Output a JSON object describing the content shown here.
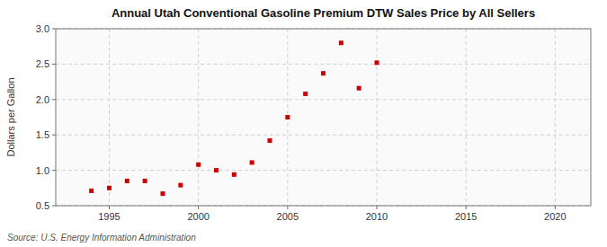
{
  "chart_data": {
    "type": "scatter",
    "title": "Annual Utah Conventional Gasoline Premium DTW Sales Price by All Sellers",
    "y_label": "Dollars per Gallon",
    "annotations": [
      "Source: U.S. Energy Information Administration"
    ],
    "x": [
      1994,
      1995,
      1996,
      1997,
      1998,
      1999,
      2000,
      2001,
      2002,
      2003,
      2004,
      2005,
      2006,
      2007,
      2008,
      2009,
      2010
    ],
    "values": [
      0.71,
      0.75,
      0.85,
      0.85,
      0.67,
      0.79,
      1.08,
      1.0,
      0.94,
      1.11,
      1.42,
      1.75,
      2.08,
      2.37,
      2.8,
      2.16,
      2.52
    ],
    "color": "#cc0000",
    "marker": "square",
    "xlim": [
      1992,
      2022
    ],
    "ylim": [
      0.5,
      3.0
    ],
    "xticks": [
      1995,
      2000,
      2005,
      2010,
      2015,
      2020
    ],
    "yticks": [
      0.5,
      {
        "value": 1.0,
        "label": "1.0"
      },
      1.5,
      {
        "value": 2.0,
        "label": "2.0"
      },
      2.5,
      {
        "value": 3.0,
        "label": "3.0"
      }
    ],
    "grid": true
  }
}
